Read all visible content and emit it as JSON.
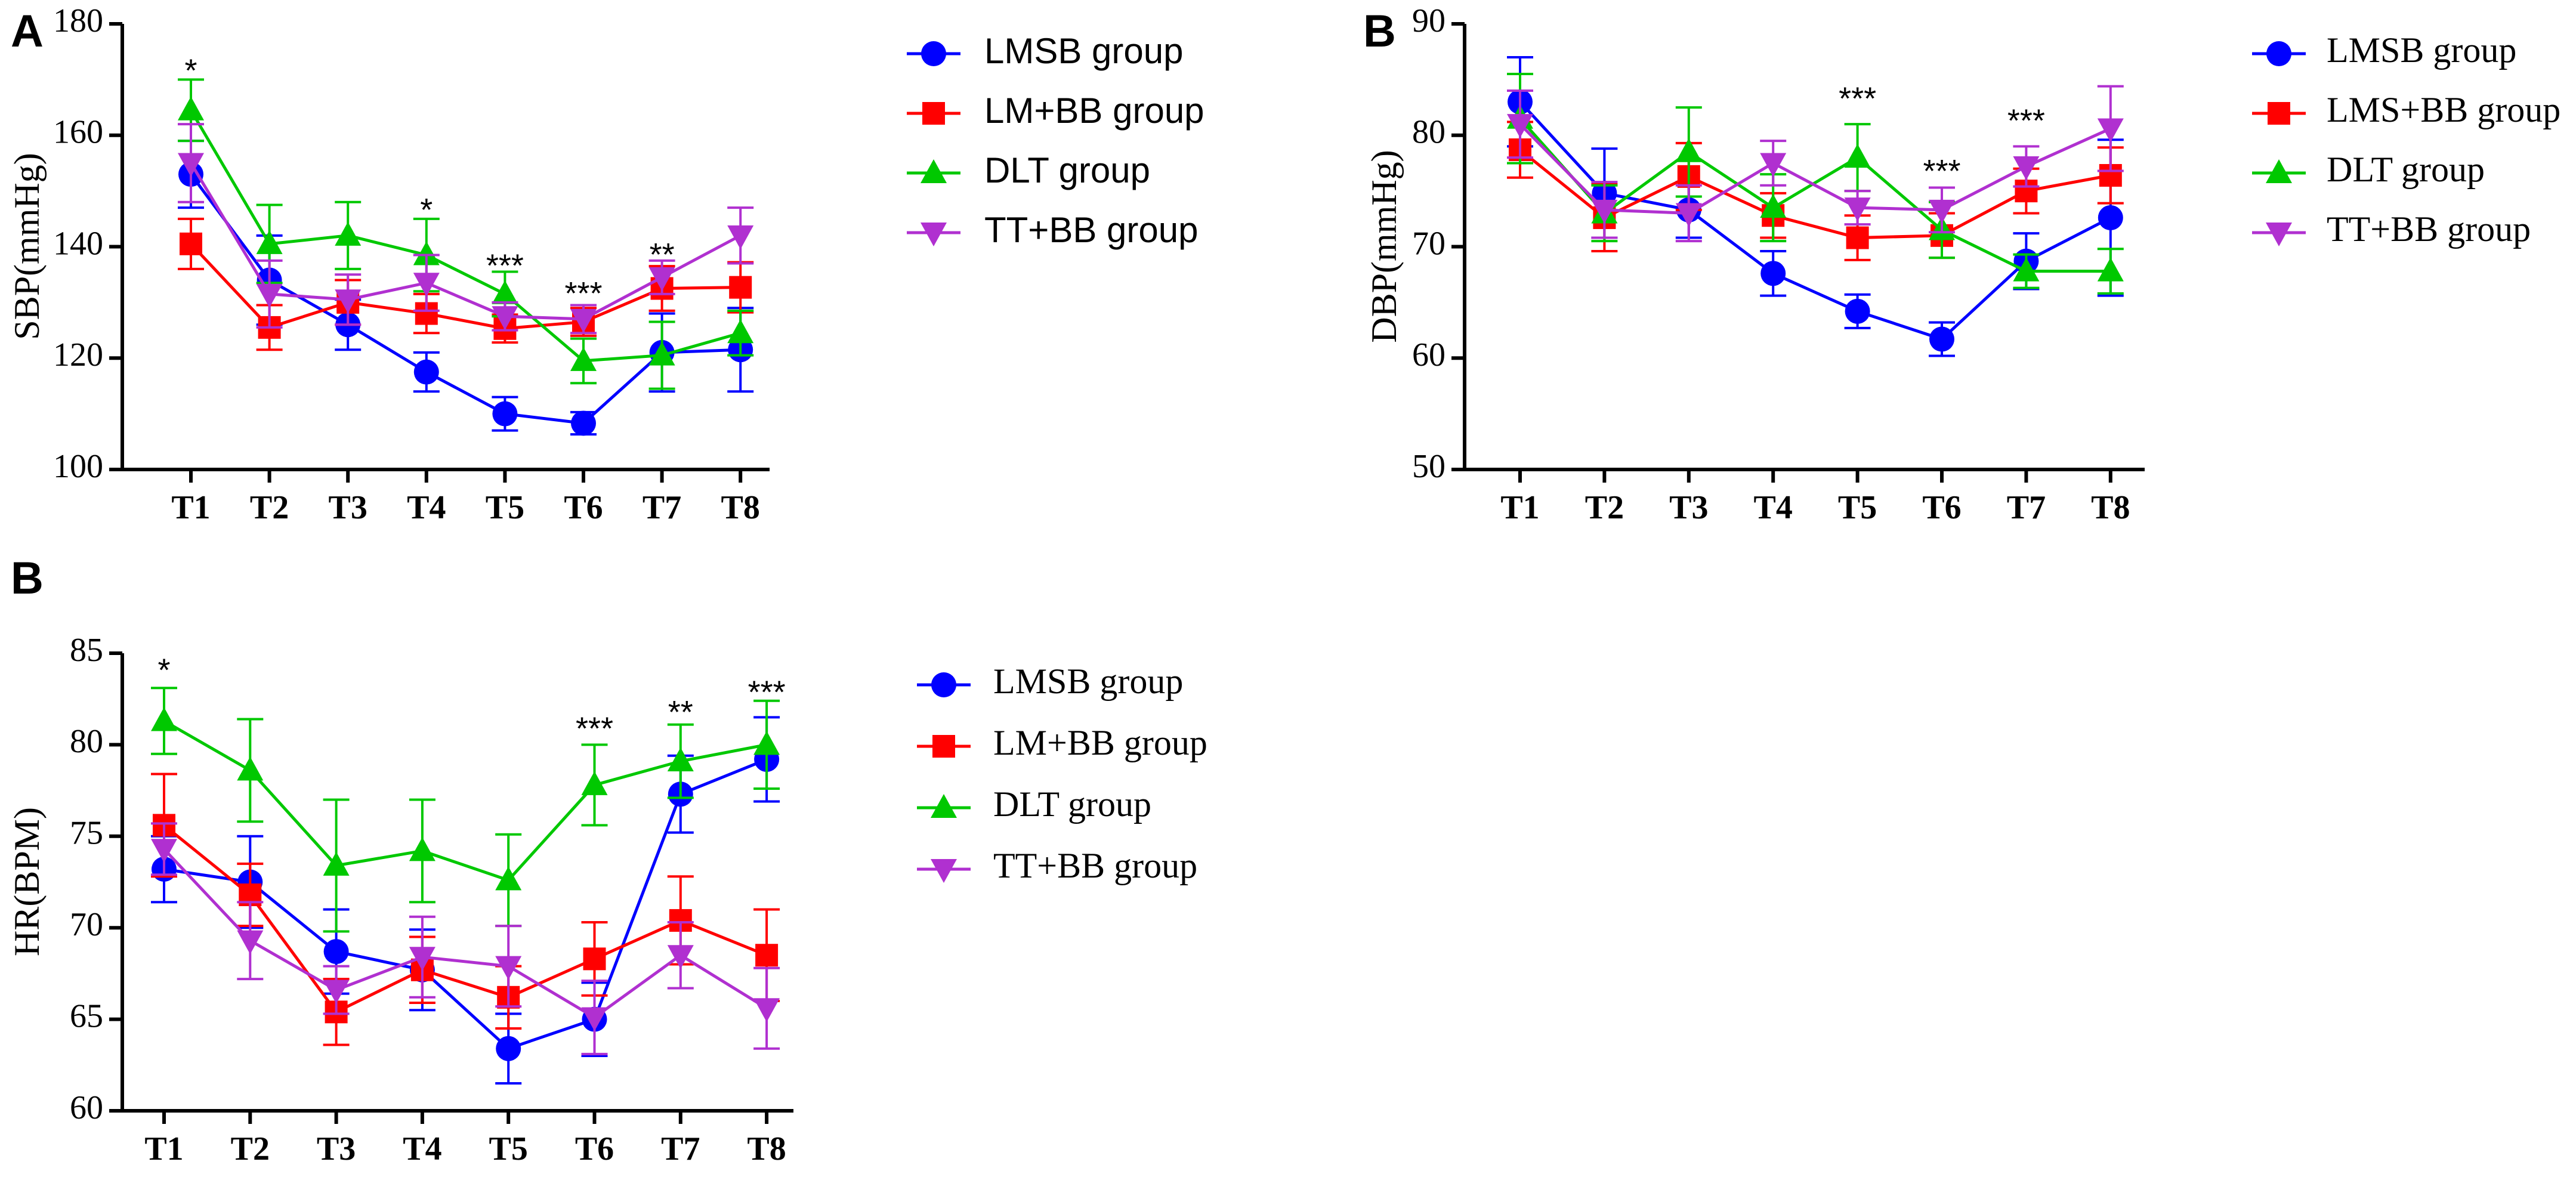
{
  "chart_data": [
    {
      "panel": "A",
      "type": "line",
      "ylabel": "SBP(mmHg)",
      "ylim": [
        100,
        180
      ],
      "yticks": [
        100,
        120,
        140,
        160,
        180
      ],
      "categories": [
        "T1",
        "T2",
        "T3",
        "T4",
        "T5",
        "T6",
        "T7",
        "T8"
      ],
      "series": [
        {
          "name": "LMSB group",
          "color": "#0000ff",
          "marker": "circle",
          "values": [
            153,
            134,
            126,
            117.5,
            110,
            108.3,
            121,
            121.5
          ],
          "errors": [
            6,
            8,
            4.5,
            3.5,
            3,
            2,
            7,
            7.5
          ]
        },
        {
          "name": "LM+BB group",
          "color": "#ff0000",
          "marker": "square",
          "values": [
            140.5,
            125.5,
            130,
            128,
            125.3,
            126.5,
            132.5,
            132.7
          ],
          "errors": [
            4.5,
            4,
            4,
            3.5,
            2.5,
            2.5,
            4,
            4.5
          ]
        },
        {
          "name": "DLT group",
          "color": "#00c800",
          "marker": "triangle-up",
          "values": [
            164.5,
            140.5,
            142,
            138.5,
            131.5,
            119.5,
            120.5,
            124.5
          ],
          "errors": [
            5.5,
            7,
            6,
            6.5,
            4,
            4,
            6,
            4
          ]
        },
        {
          "name": "TT+BB group",
          "color": "#b030d0",
          "marker": "triangle-down",
          "values": [
            155,
            131.5,
            130.5,
            133.5,
            127.5,
            127,
            134.5,
            142
          ],
          "errors": [
            7,
            6,
            4.5,
            5,
            2.5,
            2.5,
            3,
            5
          ]
        }
      ],
      "significance": [
        {
          "category": "T1",
          "label": "*",
          "y": 172
        },
        {
          "category": "T4",
          "label": "*",
          "y": 147
        },
        {
          "category": "T5",
          "label": "***",
          "y": 137
        },
        {
          "category": "T6",
          "label": "***",
          "y": 132
        },
        {
          "category": "T7",
          "label": "**",
          "y": 139
        }
      ]
    },
    {
      "panel": "B",
      "type": "line",
      "ylabel": "DBP(mmHg)",
      "ylim": [
        50,
        90
      ],
      "yticks": [
        50,
        60,
        70,
        80,
        90
      ],
      "categories": [
        "T1",
        "T2",
        "T3",
        "T4",
        "T5",
        "T6",
        "T7",
        "T8"
      ],
      "series": [
        {
          "name": "LMSB group",
          "color": "#0000ff",
          "marker": "circle",
          "values": [
            83,
            74.8,
            73.3,
            67.6,
            64.2,
            61.7,
            68.7,
            72.6
          ],
          "errors": [
            4,
            4,
            2.5,
            2,
            1.5,
            1.5,
            2.5,
            7
          ]
        },
        {
          "name": "LMS+BB group",
          "color": "#ff0000",
          "marker": "square",
          "values": [
            78.7,
            72.6,
            76.3,
            72.8,
            70.8,
            71,
            75,
            76.4
          ],
          "errors": [
            2.5,
            3,
            3,
            2,
            2,
            2,
            2,
            2.5
          ]
        },
        {
          "name": "DLT group",
          "color": "#00c800",
          "marker": "triangle-up",
          "values": [
            81.5,
            73,
            78.5,
            73.5,
            78,
            71.5,
            67.8,
            67.8
          ],
          "errors": [
            4,
            2.5,
            4,
            3,
            3,
            2.5,
            1.5,
            2
          ]
        },
        {
          "name": "TT+BB group",
          "color": "#b030d0",
          "marker": "triangle-down",
          "values": [
            81,
            73.3,
            73,
            77.5,
            73.5,
            73.3,
            77.2,
            80.6
          ],
          "errors": [
            3,
            2.5,
            2.5,
            2,
            1.5,
            2,
            1.8,
            3.8
          ]
        }
      ],
      "significance": [
        {
          "category": "T5",
          "label": "***",
          "y": 83.5
        },
        {
          "category": "T6",
          "label": "***",
          "y": 77
        },
        {
          "category": "T7",
          "label": "***",
          "y": 81.5
        }
      ]
    },
    {
      "panel": "B",
      "type": "line",
      "ylabel": "HR(BPM)",
      "ylim": [
        60,
        85
      ],
      "yticks": [
        60,
        65,
        70,
        75,
        80,
        85
      ],
      "categories": [
        "T1",
        "T2",
        "T3",
        "T4",
        "T5",
        "T6",
        "T7",
        "T8"
      ],
      "series": [
        {
          "name": "LMSB group",
          "color": "#0000ff",
          "marker": "circle",
          "values": [
            73.2,
            72.5,
            68.7,
            67.7,
            63.4,
            65,
            77.3,
            79.2
          ],
          "errors": [
            1.8,
            2.5,
            2.3,
            2.2,
            1.9,
            2,
            2.1,
            2.3
          ]
        },
        {
          "name": "LM+BB group",
          "color": "#ff0000",
          "marker": "square",
          "values": [
            75.6,
            71.8,
            65.4,
            67.7,
            66.2,
            68.3,
            70.4,
            68.5
          ],
          "errors": [
            2.8,
            1.7,
            1.8,
            1.8,
            1.7,
            2,
            2.4,
            2.5
          ]
        },
        {
          "name": "DLT group",
          "color": "#00c800",
          "marker": "triangle-up",
          "values": [
            81.3,
            78.6,
            73.4,
            74.2,
            72.6,
            77.8,
            79.1,
            80
          ],
          "errors": [
            1.8,
            2.8,
            3.6,
            2.8,
            2.5,
            2.2,
            2,
            2.4
          ]
        },
        {
          "name": "TT+BB group",
          "color": "#b030d0",
          "marker": "triangle-down",
          "values": [
            74.3,
            69.3,
            66.6,
            68.4,
            67.9,
            65.1,
            68.5,
            65.6
          ],
          "errors": [
            1.4,
            2.1,
            1.3,
            2.2,
            2.2,
            2,
            1.8,
            2.2
          ]
        }
      ],
      "significance": [
        {
          "category": "T1",
          "label": "*",
          "y": 84.2
        },
        {
          "category": "T6",
          "label": "***",
          "y": 81
        },
        {
          "category": "T7",
          "label": "**",
          "y": 81.9
        },
        {
          "category": "T8",
          "label": "***",
          "y": 83
        }
      ]
    }
  ]
}
